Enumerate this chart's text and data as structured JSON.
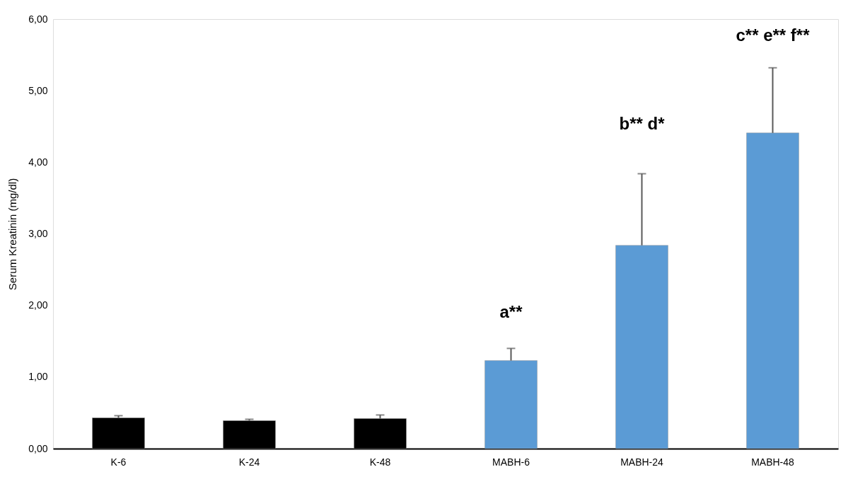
{
  "chart_data": {
    "type": "bar",
    "ylabel": "Serum Kreatinin (mg/dl)",
    "categories": [
      "K-6",
      "K-24",
      "K-48",
      "MABH-6",
      "MABH-24",
      "MABH-48"
    ],
    "values": [
      0.43,
      0.39,
      0.42,
      1.23,
      2.84,
      4.41
    ],
    "colors": [
      "#000000",
      "#000000",
      "#000000",
      "#5b9bd5",
      "#5b9bd5",
      "#5b9bd5"
    ],
    "errors": [
      [
        0.43,
        0.46
      ],
      [
        0.39,
        0.41
      ],
      [
        0.42,
        0.47
      ],
      [
        1.23,
        1.4
      ],
      [
        2.84,
        3.84
      ],
      [
        4.41,
        5.32
      ]
    ],
    "ylim": [
      0,
      6
    ],
    "yticks": [
      {
        "value": 0,
        "label": "0,00"
      },
      {
        "value": 1,
        "label": "1,00"
      },
      {
        "value": 2,
        "label": "2,00"
      },
      {
        "value": 3,
        "label": "3,00"
      },
      {
        "value": 4,
        "label": "4,00"
      },
      {
        "value": 5,
        "label": "5,00"
      },
      {
        "value": 6,
        "label": "6,00"
      }
    ],
    "grid": false,
    "annotations": [
      "a**",
      "b** d*",
      "c** e** f**"
    ]
  }
}
